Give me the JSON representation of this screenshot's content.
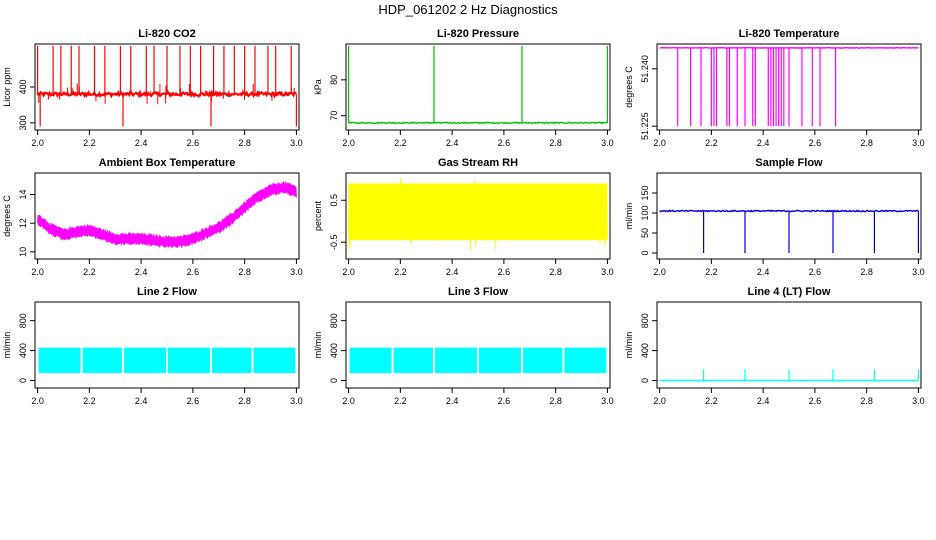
{
  "figure": {
    "title": "HDP_061202  2 Hz Diagnostics"
  },
  "chart_data": [
    {
      "type": "line",
      "title": "Li-820 CO2",
      "xlabel": "",
      "ylabel": "Licor ppm",
      "color": "#ff0000",
      "xlim": [
        1.99,
        3.01
      ],
      "ylim": [
        280,
        520
      ],
      "xticks": [
        "2.0",
        "2.2",
        "2.4",
        "2.6",
        "2.8",
        "3.0"
      ],
      "yticks": [
        "300",
        "400"
      ],
      "xtick_values": [
        2.0,
        2.2,
        2.4,
        2.6,
        2.8,
        3.0
      ],
      "ytick_values": [
        300,
        400
      ],
      "pattern": "spikes",
      "base": 380,
      "noise": 5,
      "spikes_up": [
        2.0,
        2.06,
        2.09,
        2.13,
        2.16,
        2.22,
        2.26,
        2.32,
        2.36,
        2.42,
        2.45,
        2.5,
        2.55,
        2.59,
        2.63,
        2.68,
        2.72,
        2.76,
        2.8,
        2.84,
        2.89,
        2.92,
        2.98
      ],
      "spike_up_value": 515,
      "spikes_down": [
        2.01,
        2.33,
        2.67,
        3.0
      ],
      "spike_down_value": 290
    },
    {
      "type": "line",
      "title": "Li-820 Pressure",
      "xlabel": "",
      "ylabel": "kPa",
      "color": "#00c000",
      "xlim": [
        1.99,
        3.01
      ],
      "ylim": [
        66,
        90
      ],
      "xticks": [
        "2.0",
        "2.2",
        "2.4",
        "2.6",
        "2.8",
        "3.0"
      ],
      "yticks": [
        "70",
        "80"
      ],
      "xtick_values": [
        2.0,
        2.2,
        2.4,
        2.6,
        2.8,
        3.0
      ],
      "ytick_values": [
        70,
        80
      ],
      "pattern": "spikes",
      "base": 68,
      "noise": 0.15,
      "spikes_up": [
        2.0,
        2.33,
        2.67,
        3.0
      ],
      "spike_up_value": 89.5,
      "spikes_down": [],
      "spike_down_value": 68
    },
    {
      "type": "line",
      "title": "Li-820 Temperature",
      "xlabel": "",
      "ylabel": "degrees C",
      "color": "#ff00ff",
      "xlim": [
        1.99,
        3.01
      ],
      "ylim": [
        51.224,
        51.2465
      ],
      "xticks": [
        "2.0",
        "2.2",
        "2.4",
        "2.6",
        "2.8",
        "3.0"
      ],
      "yticks": [
        "51.225",
        "51.240"
      ],
      "xtick_values": [
        2.0,
        2.2,
        2.4,
        2.6,
        2.8,
        3.0
      ],
      "ytick_values": [
        51.225,
        51.24
      ],
      "pattern": "spikes",
      "base": 51.2455,
      "noise": 5e-05,
      "spikes_up": [],
      "spike_up_value": 51.2455,
      "spikes_down": [
        2.07,
        2.12,
        2.16,
        2.2,
        2.21,
        2.22,
        2.26,
        2.27,
        2.3,
        2.33,
        2.36,
        2.37,
        2.42,
        2.43,
        2.44,
        2.45,
        2.46,
        2.47,
        2.48,
        2.5,
        2.55,
        2.59,
        2.62,
        2.68
      ],
      "spike_down_value": 51.225
    },
    {
      "type": "line",
      "title": "Ambient Box Temperature",
      "xlabel": "",
      "ylabel": "degrees C",
      "color": "#ff00ff",
      "xlim": [
        1.99,
        3.01
      ],
      "ylim": [
        9.5,
        15.5
      ],
      "xticks": [
        "2.0",
        "2.2",
        "2.4",
        "2.6",
        "2.8",
        "3.0"
      ],
      "yticks": [
        "10",
        "12",
        "14"
      ],
      "xtick_values": [
        2.0,
        2.2,
        2.4,
        2.6,
        2.8,
        3.0
      ],
      "ytick_values": [
        10,
        12,
        14
      ],
      "pattern": "band",
      "curve_x": [
        2.0,
        2.05,
        2.1,
        2.15,
        2.2,
        2.25,
        2.3,
        2.35,
        2.4,
        2.45,
        2.5,
        2.55,
        2.6,
        2.65,
        2.7,
        2.75,
        2.8,
        2.85,
        2.9,
        2.95,
        3.0
      ],
      "curve_y": [
        12.3,
        11.6,
        11.2,
        11.4,
        11.5,
        11.2,
        10.9,
        10.9,
        10.9,
        10.8,
        10.7,
        10.7,
        10.9,
        11.3,
        11.7,
        12.3,
        13.1,
        13.8,
        14.3,
        14.5,
        14.2
      ],
      "band_width": 0.9
    },
    {
      "type": "line",
      "title": "Gas Stream RH",
      "xlabel": "",
      "ylabel": "percent",
      "color": "#ffff00",
      "xlim": [
        1.99,
        3.01
      ],
      "ylim": [
        -0.9,
        1.15
      ],
      "xticks": [
        "2.0",
        "2.2",
        "2.4",
        "2.6",
        "2.8",
        "3.0"
      ],
      "yticks": [
        "-0.5",
        "0.5"
      ],
      "xtick_values": [
        2.0,
        2.2,
        2.4,
        2.6,
        2.8,
        3.0
      ],
      "ytick_values": [
        -0.5,
        0.5
      ],
      "pattern": "noise",
      "low": -0.7,
      "high": 1.05,
      "core_low": -0.45,
      "core_high": 0.9
    },
    {
      "type": "line",
      "title": "Sample Flow",
      "xlabel": "",
      "ylabel": "ml/min",
      "color": "#0000cc",
      "xlim": [
        1.99,
        3.01
      ],
      "ylim": [
        -15,
        200
      ],
      "xticks": [
        "2.0",
        "2.2",
        "2.4",
        "2.6",
        "2.8",
        "3.0"
      ],
      "yticks": [
        "0",
        "50",
        "100",
        "150"
      ],
      "xtick_values": [
        2.0,
        2.2,
        2.4,
        2.6,
        2.8,
        3.0
      ],
      "ytick_values": [
        0,
        50,
        100,
        150
      ],
      "pattern": "spikes",
      "base": 105,
      "noise": 1.5,
      "spikes_up": [],
      "spike_up_value": 105,
      "spikes_down": [
        2.17,
        2.33,
        2.5,
        2.67,
        2.83,
        3.0
      ],
      "spike_down_value": 0
    },
    {
      "type": "line",
      "title": "Line 2 Flow",
      "xlabel": "",
      "ylabel": "ml/min",
      "color": "#00ffff",
      "xlim": [
        1.99,
        3.01
      ],
      "ylim": [
        -100,
        1050
      ],
      "xticks": [
        "2.0",
        "2.2",
        "2.4",
        "2.6",
        "2.8",
        "3.0"
      ],
      "yticks": [
        "0",
        "400",
        "800"
      ],
      "xtick_values": [
        2.0,
        2.2,
        2.4,
        2.6,
        2.8,
        3.0
      ],
      "ytick_values": [
        0,
        400,
        800
      ],
      "pattern": "blocks",
      "block_low": 100,
      "block_high": 440,
      "gaps": [
        2.0,
        2.17,
        2.33,
        2.5,
        2.67,
        2.83,
        3.0
      ]
    },
    {
      "type": "line",
      "title": "Line 3 Flow",
      "xlabel": "",
      "ylabel": "ml/min",
      "color": "#00ffff",
      "xlim": [
        1.99,
        3.01
      ],
      "ylim": [
        -100,
        1050
      ],
      "xticks": [
        "2.0",
        "2.2",
        "2.4",
        "2.6",
        "2.8",
        "3.0"
      ],
      "yticks": [
        "0",
        "400",
        "800"
      ],
      "xtick_values": [
        2.0,
        2.2,
        2.4,
        2.6,
        2.8,
        3.0
      ],
      "ytick_values": [
        0,
        400,
        800
      ],
      "pattern": "blocks",
      "block_low": 100,
      "block_high": 440,
      "gaps": [
        2.0,
        2.17,
        2.33,
        2.5,
        2.67,
        2.83,
        3.0
      ]
    },
    {
      "type": "line",
      "title": "Line 4 (LT) Flow",
      "xlabel": "",
      "ylabel": "ml/min",
      "color": "#00ffff",
      "xlim": [
        1.99,
        3.01
      ],
      "ylim": [
        -100,
        1050
      ],
      "xticks": [
        "2.0",
        "2.2",
        "2.4",
        "2.6",
        "2.8",
        "3.0"
      ],
      "yticks": [
        "0",
        "400",
        "800"
      ],
      "xtick_values": [
        2.0,
        2.2,
        2.4,
        2.6,
        2.8,
        3.0
      ],
      "ytick_values": [
        0,
        400,
        800
      ],
      "pattern": "spikes",
      "base": 0,
      "noise": 1,
      "spikes_up": [
        2.17,
        2.33,
        2.5,
        2.67,
        2.83,
        3.0
      ],
      "spike_up_value": 150,
      "spikes_down": [],
      "spike_down_value": 0
    }
  ]
}
